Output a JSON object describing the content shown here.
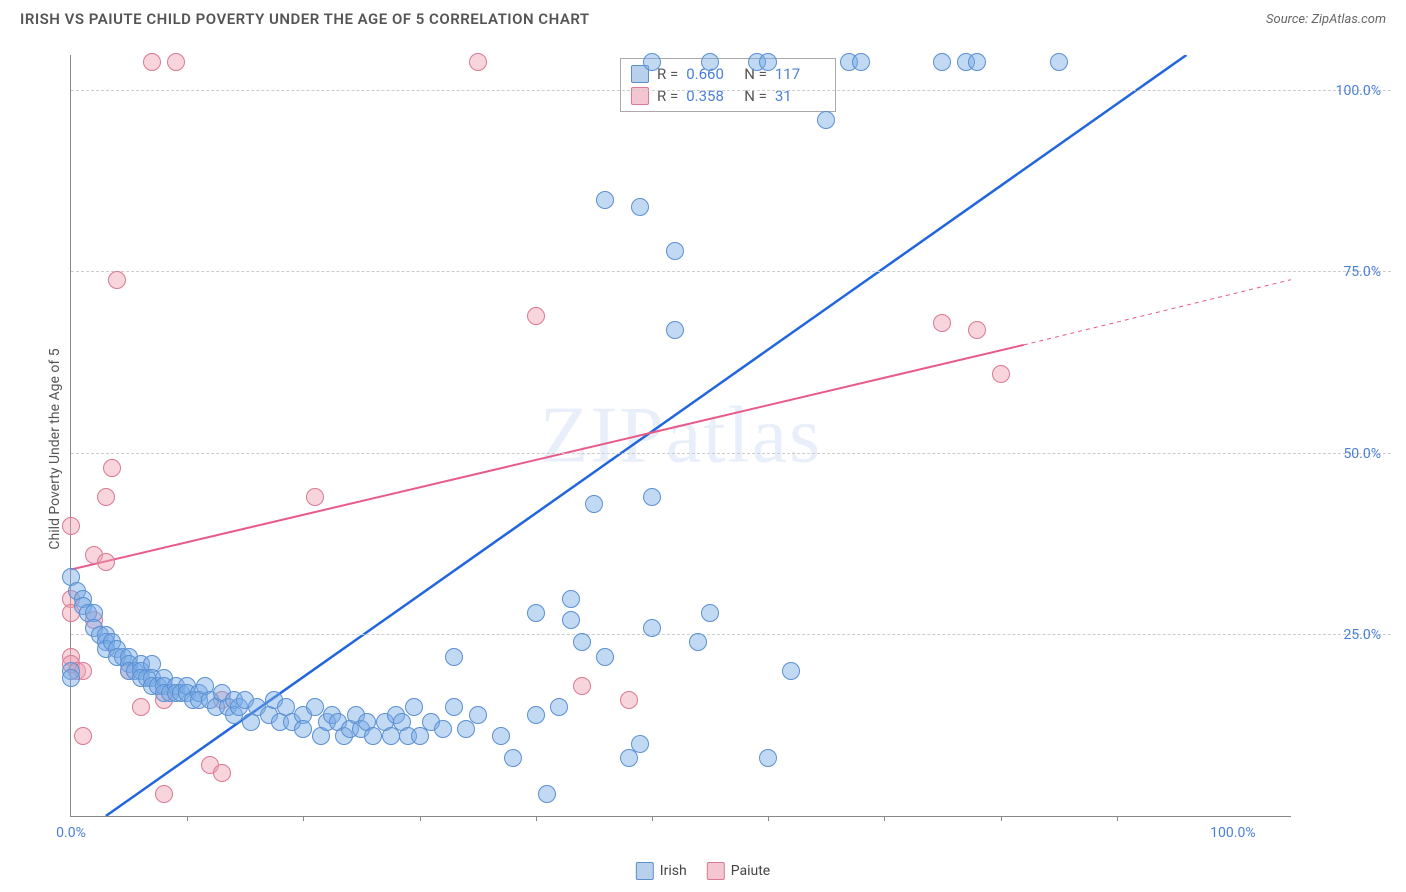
{
  "header": {
    "title": "IRISH VS PAIUTE CHILD POVERTY UNDER THE AGE OF 5 CORRELATION CHART",
    "source_prefix": "Source: ",
    "source_name": "ZipAtlas.com"
  },
  "chart": {
    "type": "scatter",
    "y_axis_label": "Child Poverty Under the Age of 5",
    "watermark": "ZIPatlas",
    "background_color": "#ffffff",
    "grid_color": "#cccccc",
    "axis_color": "#888888",
    "tick_label_color": "#4a7fd8",
    "xlim": [
      0,
      105
    ],
    "ylim": [
      0,
      105
    ],
    "y_ticks": [
      {
        "value": 25,
        "label": "25.0%"
      },
      {
        "value": 50,
        "label": "50.0%"
      },
      {
        "value": 75,
        "label": "75.0%"
      },
      {
        "value": 100,
        "label": "100.0%"
      }
    ],
    "x_ticks_major": [
      {
        "value": 0,
        "label": "0.0%"
      },
      {
        "value": 100,
        "label": "100.0%"
      }
    ],
    "x_ticks_minor": [
      10,
      20,
      30,
      40,
      50,
      60,
      70,
      80,
      90
    ],
    "marker_radius": 9,
    "marker_stroke_width": 1,
    "series": {
      "irish": {
        "label": "Irish",
        "fill_color": "rgba(120,170,230,0.45)",
        "stroke_color": "#5a8fd0",
        "swatch_fill": "#b8d0ec",
        "swatch_border": "#5a8fd0",
        "R": "0.660",
        "N": "117",
        "trend": {
          "x1": 3,
          "y1": 0,
          "x2": 96,
          "y2": 105,
          "color": "#2266dd",
          "width": 2.5,
          "dash": "none"
        },
        "points": [
          [
            0,
            33
          ],
          [
            0.5,
            31
          ],
          [
            1,
            30
          ],
          [
            1,
            29
          ],
          [
            1.5,
            28
          ],
          [
            0,
            20
          ],
          [
            0,
            19
          ],
          [
            2,
            28
          ],
          [
            2,
            26
          ],
          [
            2.5,
            25
          ],
          [
            3,
            25
          ],
          [
            3,
            24
          ],
          [
            3,
            23
          ],
          [
            3.5,
            24
          ],
          [
            4,
            23
          ],
          [
            4,
            22
          ],
          [
            4.5,
            22
          ],
          [
            5,
            22
          ],
          [
            5,
            21
          ],
          [
            5,
            20
          ],
          [
            5.5,
            20
          ],
          [
            6,
            21
          ],
          [
            6,
            20
          ],
          [
            6,
            19
          ],
          [
            6.5,
            19
          ],
          [
            7,
            21
          ],
          [
            7,
            19
          ],
          [
            7,
            18
          ],
          [
            7.5,
            18
          ],
          [
            8,
            19
          ],
          [
            8,
            18
          ],
          [
            8,
            17
          ],
          [
            8.5,
            17
          ],
          [
            9,
            18
          ],
          [
            9,
            17
          ],
          [
            9.5,
            17
          ],
          [
            10,
            18
          ],
          [
            10,
            17
          ],
          [
            10.5,
            16
          ],
          [
            11,
            17
          ],
          [
            11,
            16
          ],
          [
            11.5,
            18
          ],
          [
            12,
            16
          ],
          [
            12.5,
            15
          ],
          [
            13,
            17
          ],
          [
            13.5,
            15
          ],
          [
            14,
            16
          ],
          [
            14,
            14
          ],
          [
            14.5,
            15
          ],
          [
            15,
            16
          ],
          [
            15.5,
            13
          ],
          [
            16,
            15
          ],
          [
            17,
            14
          ],
          [
            17.5,
            16
          ],
          [
            18,
            13
          ],
          [
            18.5,
            15
          ],
          [
            19,
            13
          ],
          [
            20,
            14
          ],
          [
            20,
            12
          ],
          [
            21,
            15
          ],
          [
            21.5,
            11
          ],
          [
            22,
            13
          ],
          [
            22.5,
            14
          ],
          [
            23,
            13
          ],
          [
            23.5,
            11
          ],
          [
            24,
            12
          ],
          [
            24.5,
            14
          ],
          [
            25,
            12
          ],
          [
            25.5,
            13
          ],
          [
            26,
            11
          ],
          [
            27,
            13
          ],
          [
            27.5,
            11
          ],
          [
            28,
            14
          ],
          [
            28.5,
            13
          ],
          [
            29,
            11
          ],
          [
            29.5,
            15
          ],
          [
            30,
            11
          ],
          [
            31,
            13
          ],
          [
            32,
            12
          ],
          [
            33,
            15
          ],
          [
            33,
            22
          ],
          [
            34,
            12
          ],
          [
            35,
            14
          ],
          [
            37,
            11
          ],
          [
            38,
            8
          ],
          [
            40,
            14
          ],
          [
            40,
            28
          ],
          [
            41,
            3
          ],
          [
            42,
            15
          ],
          [
            43,
            30
          ],
          [
            43,
            27
          ],
          [
            44,
            24
          ],
          [
            45,
            43
          ],
          [
            46,
            22
          ],
          [
            46,
            85
          ],
          [
            48,
            8
          ],
          [
            49,
            84
          ],
          [
            50,
            26
          ],
          [
            50,
            44
          ],
          [
            50,
            104
          ],
          [
            52,
            78
          ],
          [
            52,
            67
          ],
          [
            54,
            24
          ],
          [
            55,
            28
          ],
          [
            55,
            104
          ],
          [
            59,
            104
          ],
          [
            60,
            104
          ],
          [
            62,
            20
          ],
          [
            65,
            96
          ],
          [
            67,
            104
          ],
          [
            68,
            104
          ],
          [
            75,
            104
          ],
          [
            77,
            104
          ],
          [
            78,
            104
          ],
          [
            85,
            104
          ],
          [
            60,
            8
          ],
          [
            49,
            10
          ]
        ]
      },
      "paiute": {
        "label": "Paiute",
        "fill_color": "rgba(240,160,180,0.45)",
        "stroke_color": "#d97a94",
        "swatch_fill": "#f3c6d2",
        "swatch_border": "#d97a94",
        "R": "0.358",
        "N": "31",
        "trend_solid": {
          "x1": 0,
          "y1": 34,
          "x2": 82,
          "y2": 65,
          "color": "#e85a8a",
          "width": 2,
          "dash": "none"
        },
        "trend_dash": {
          "x1": 82,
          "y1": 65,
          "x2": 105,
          "y2": 74,
          "color": "#e85a8a",
          "width": 1,
          "dash": "4,4"
        },
        "points": [
          [
            0,
            40
          ],
          [
            0,
            30
          ],
          [
            0,
            28
          ],
          [
            0,
            22
          ],
          [
            0,
            21
          ],
          [
            0.5,
            20
          ],
          [
            1,
            20
          ],
          [
            1,
            11
          ],
          [
            2,
            36
          ],
          [
            2,
            27
          ],
          [
            3,
            44
          ],
          [
            3,
            35
          ],
          [
            3.5,
            48
          ],
          [
            4,
            74
          ],
          [
            5,
            20
          ],
          [
            6,
            15
          ],
          [
            7,
            104
          ],
          [
            8,
            3
          ],
          [
            8,
            16
          ],
          [
            9,
            104
          ],
          [
            12,
            7
          ],
          [
            13,
            6
          ],
          [
            13,
            16
          ],
          [
            21,
            44
          ],
          [
            35,
            104
          ],
          [
            40,
            69
          ],
          [
            44,
            18
          ],
          [
            48,
            16
          ],
          [
            75,
            68
          ],
          [
            78,
            67
          ],
          [
            80,
            61
          ]
        ]
      }
    }
  },
  "legend": {
    "irish": "Irish",
    "paiute": "Paiute"
  },
  "stats_labels": {
    "R": "R =",
    "N": "N ="
  }
}
